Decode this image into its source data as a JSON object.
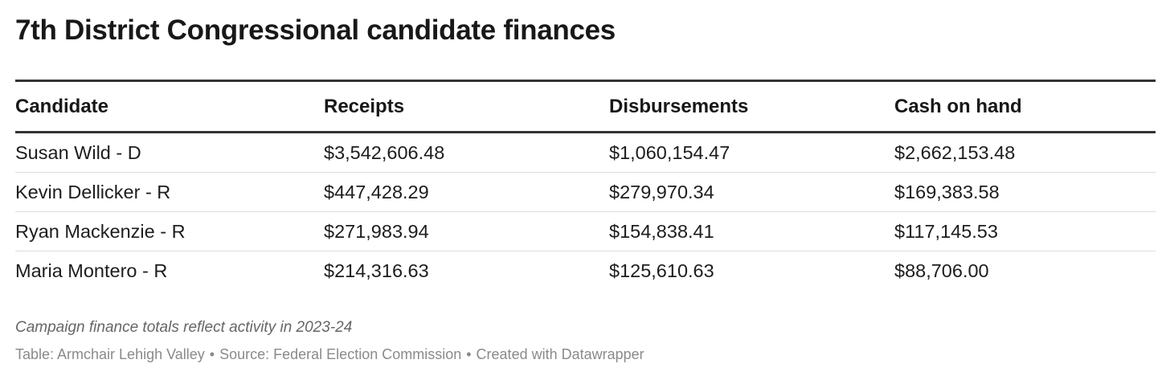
{
  "chart_data": {
    "type": "table",
    "title": "7th District Congressional candidate finances",
    "columns": [
      "Candidate",
      "Receipts",
      "Disbursements",
      "Cash on hand"
    ],
    "rows": [
      [
        "Susan Wild - D",
        "$3,542,606.48",
        "$1,060,154.47",
        "$2,662,153.48"
      ],
      [
        "Kevin Dellicker - R",
        "$447,428.29",
        "$279,970.34",
        "$169,383.58"
      ],
      [
        "Ryan Mackenzie - R",
        "$271,983.94",
        "$154,838.41",
        "$117,145.53"
      ],
      [
        "Maria Montero - R",
        "$214,316.63",
        "$125,610.63",
        "$88,706.00"
      ]
    ],
    "notes": "Campaign finance totals reflect activity in 2023-24",
    "footer": {
      "table_credit": "Table: Armchair Lehigh Valley",
      "source": "Source: Federal Election Commission",
      "created_with": "Created with Datawrapper",
      "separator": "•"
    }
  },
  "colors": {
    "text": "#1d1d1d",
    "rule": "#333333",
    "row_divider": "#dcdcdc",
    "notes": "#666666",
    "footer": "#8a8a8a"
  }
}
